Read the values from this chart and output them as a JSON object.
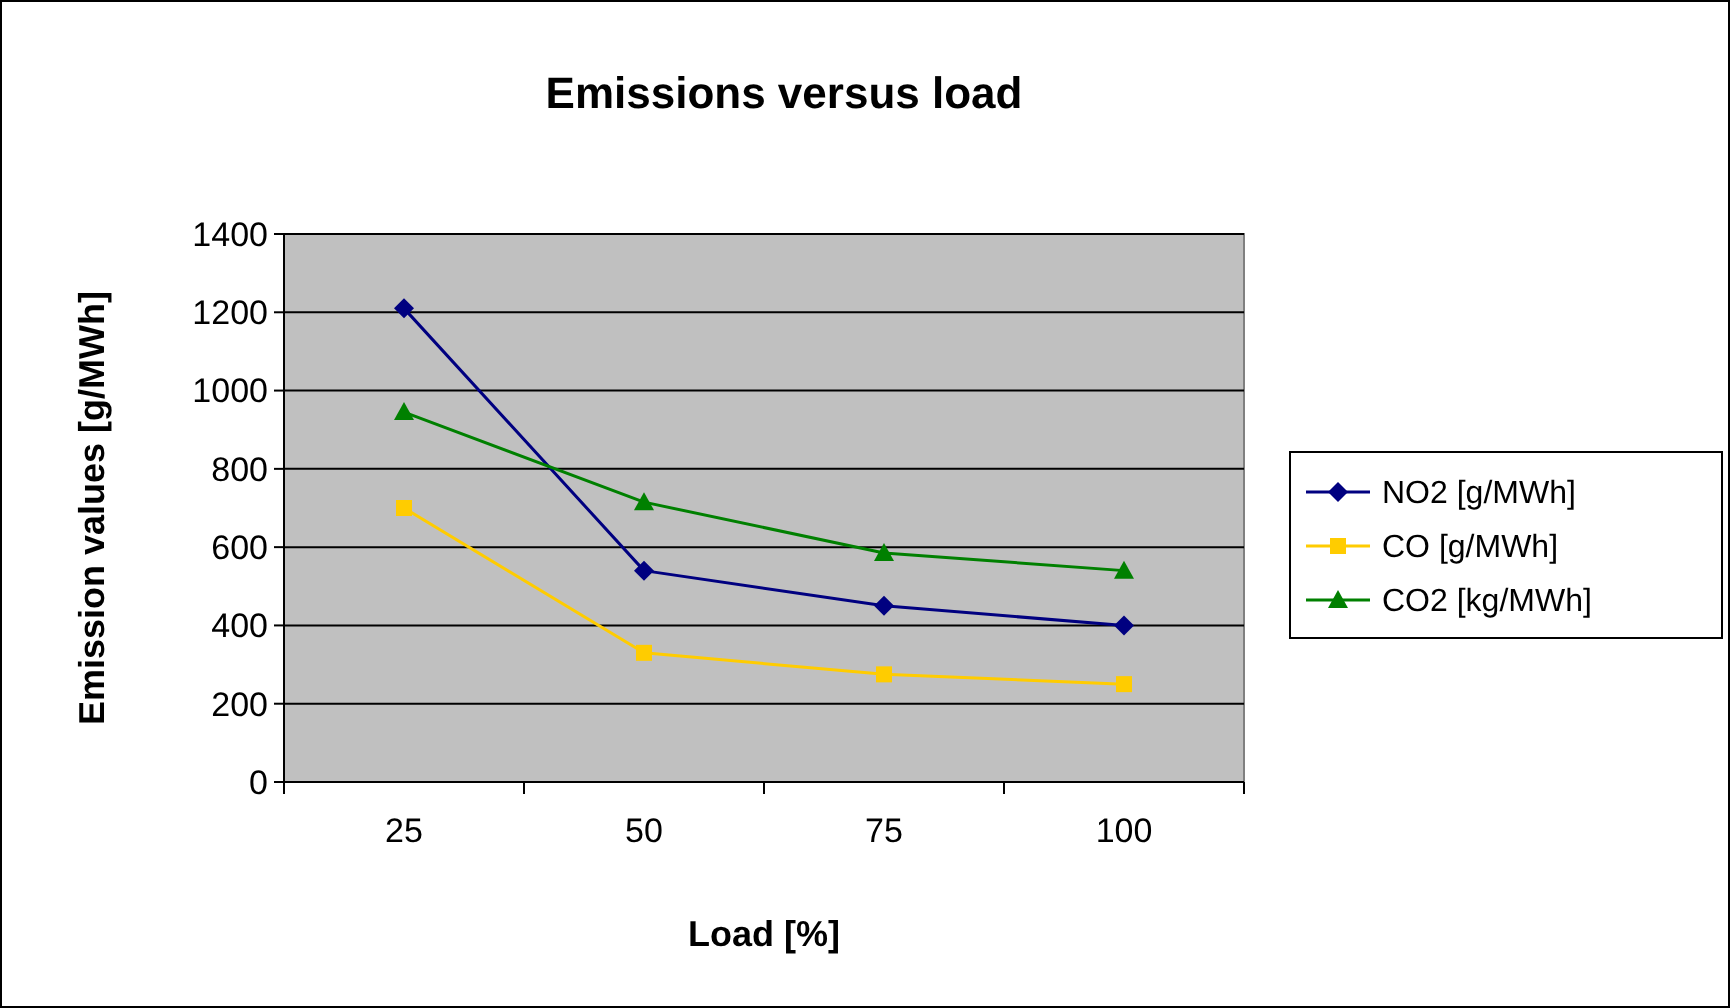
{
  "chart_data": {
    "type": "line",
    "title": "Emissions versus load",
    "xlabel": "Load [%]",
    "ylabel": "Emission values [g/MWh]",
    "categories": [
      "25",
      "50",
      "75",
      "100"
    ],
    "series": [
      {
        "name": "NO2 [g/MWh]",
        "color": "#000080",
        "marker": "diamond",
        "values": [
          1210,
          540,
          450,
          400
        ]
      },
      {
        "name": "CO [g/MWh]",
        "color": "#ffcc00",
        "marker": "square",
        "values": [
          700,
          330,
          275,
          250
        ]
      },
      {
        "name": "CO2 [kg/MWh]",
        "color": "#008000",
        "marker": "triangle",
        "values": [
          945,
          715,
          585,
          540
        ]
      }
    ],
    "ylim": [
      0,
      1400
    ],
    "yticks": [
      0,
      200,
      400,
      600,
      800,
      1000,
      1200,
      1400
    ],
    "grid": "y",
    "legend": "right"
  }
}
